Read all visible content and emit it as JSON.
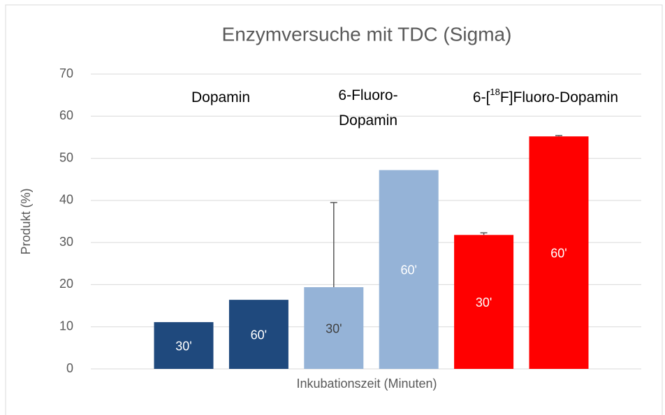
{
  "chart_data": {
    "type": "bar",
    "title": "Enzymversuche mit TDC (Sigma)",
    "y_label": "Produkt (%)",
    "x_label": "Inkubationszeit (Minuten)",
    "categories": [
      "30'",
      "60'",
      "30'",
      "60'",
      "30'",
      "60'"
    ],
    "category_label_colors": [
      "#ffffff",
      "#ffffff",
      "#404040",
      "#ffffff",
      "#ffffff",
      "#ffffff"
    ],
    "values": [
      11.1,
      16.4,
      19.4,
      47.2,
      31.8,
      55.2
    ],
    "errors": [
      null,
      null,
      20.1,
      null,
      0.5,
      0.2
    ],
    "colors": [
      "#1f497d",
      "#1f497d",
      "#95b3d7",
      "#95b3d7",
      "#ff0000",
      "#ff0000"
    ],
    "groups": [
      {
        "lines": [
          [
            "Dopamin"
          ]
        ]
      },
      {
        "lines": [
          [
            "6-Fluoro-"
          ],
          [
            "Dopamin"
          ]
        ]
      },
      {
        "lines": [
          [
            "6-[",
            "18",
            "F]Fluoro-Dopamin"
          ]
        ],
        "superscript": [
          1
        ]
      }
    ],
    "ylim": [
      0,
      70
    ],
    "yticks": [
      0,
      10,
      20,
      30,
      40,
      50,
      60,
      70
    ],
    "grid": true
  }
}
